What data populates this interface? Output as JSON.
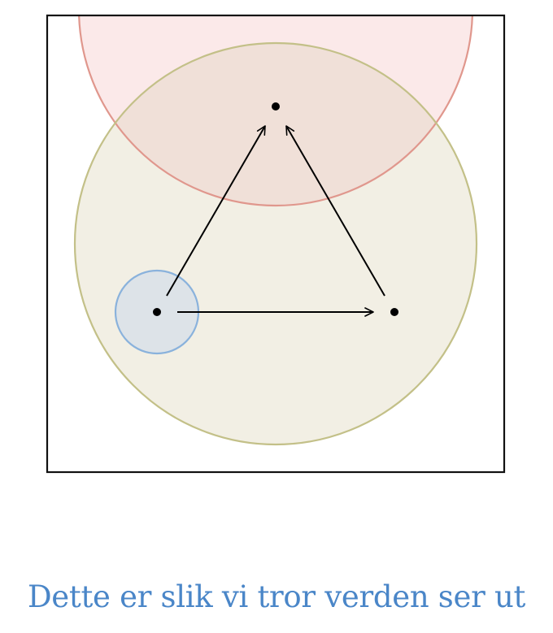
{
  "caption": {
    "text": "Dette er slik vi tror verden ser ut",
    "color": "#4a86c8"
  },
  "colors": {
    "frame_stroke": "#111111",
    "red_fill": "#fbe9e9",
    "red_stroke": "#e0978d",
    "olive_fill": "#f2efe4",
    "olive_stroke": "#c3c088",
    "overlap_fill": "#f0e0d8",
    "blue_fill": "#dde3e8",
    "blue_stroke": "#8ab2dc",
    "node_fill": "#000000",
    "arrow_stroke": "#000000"
  },
  "nodes": [
    {
      "id": "top"
    },
    {
      "id": "left"
    },
    {
      "id": "right"
    }
  ],
  "edges": [
    {
      "from": "left",
      "to": "top"
    },
    {
      "from": "right",
      "to": "top"
    },
    {
      "from": "left",
      "to": "right"
    }
  ]
}
